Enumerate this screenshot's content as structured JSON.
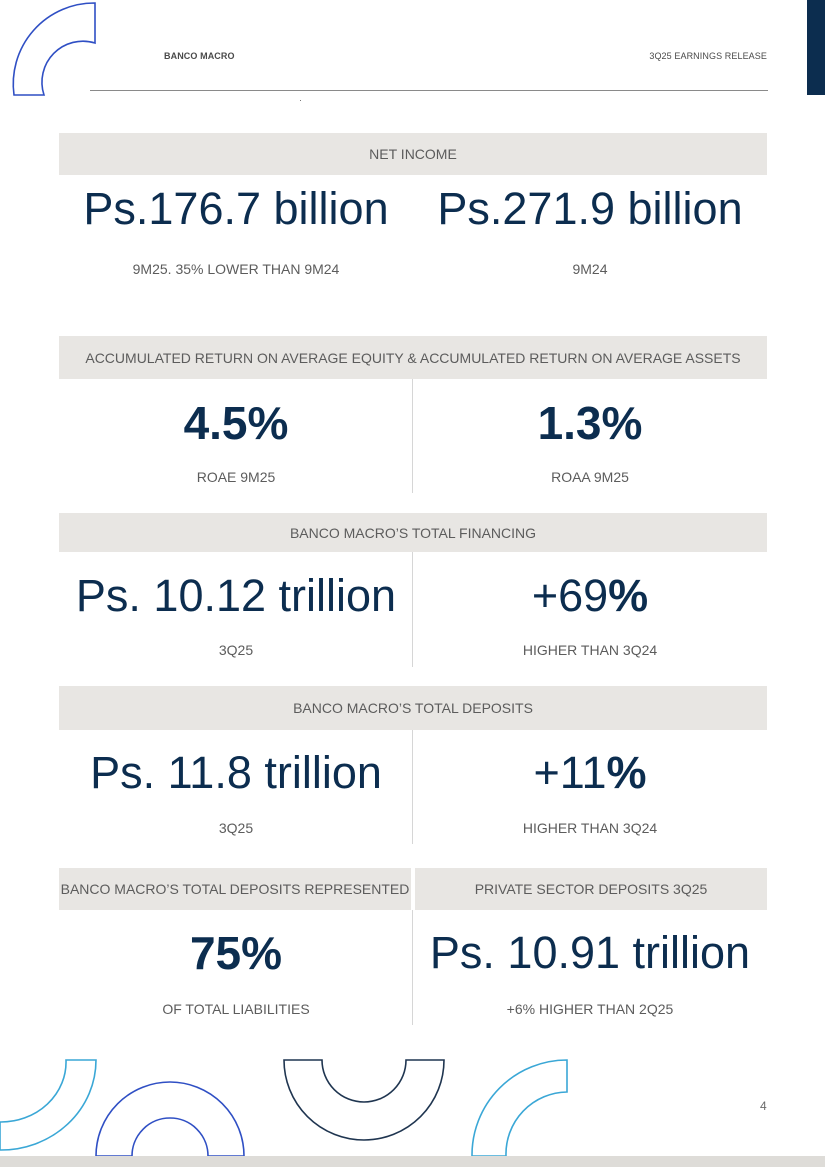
{
  "header": {
    "left_label": "BANCO MACRO",
    "right_label": "3Q25 EARNINGS RELEASE"
  },
  "sections": {
    "net_income": {
      "title": "NET INCOME",
      "left_value": "Ps.176.7 billion",
      "left_caption": "9M25. 35% LOWER THAN 9M24",
      "right_value": "Ps.271.9 billion",
      "right_caption": "9M24"
    },
    "returns": {
      "title": "ACCUMULATED RETURN ON AVERAGE EQUITY & ACCUMULATED RETURN ON AVERAGE ASSETS",
      "left_value": "4.5%",
      "left_caption": "ROAE 9M25",
      "right_value": "1.3%",
      "right_caption": "ROAA 9M25"
    },
    "financing": {
      "title": "BANCO MACRO’S TOTAL FINANCING",
      "left_value": "Ps. 10.12 trillion",
      "left_caption": "3Q25",
      "right_value_num": "+69",
      "right_value_pct": "%",
      "right_caption": "HIGHER THAN 3Q24"
    },
    "deposits": {
      "title": "BANCO MACRO’S TOTAL DEPOSITS",
      "left_value": "Ps. 11.8 trillion",
      "left_caption": "3Q25",
      "right_value_num": "+11",
      "right_value_pct": "%",
      "right_caption": "HIGHER THAN 3Q24"
    },
    "deposits_represented": {
      "left_title": "BANCO MACRO’S TOTAL DEPOSITS REPRESENTED",
      "right_title": "PRIVATE SECTOR DEPOSITS 3Q25",
      "left_value": "75%",
      "left_caption": "OF TOTAL LIABILITIES",
      "right_value": "Ps. 10.91 trillion",
      "right_caption": "+6% HIGHER THAN 2Q25"
    }
  },
  "footer": {
    "page_number": "4"
  },
  "colors": {
    "navy": "#0c2d4f",
    "band_gray": "#e8e6e3",
    "caption_gray": "#5c5c5c",
    "arc_blue": "#2f4fc4",
    "arc_cyan": "#3aa7d6",
    "arc_dark": "#1f3550"
  }
}
